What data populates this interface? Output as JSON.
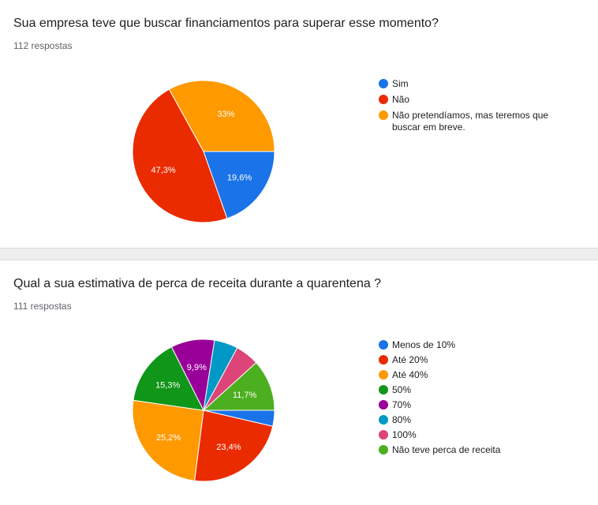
{
  "colors": {
    "blue": "#1a73e8",
    "red": "#ea4335",
    "orange": "#ff9900",
    "green": "#109618",
    "purple": "#990099",
    "teal": "#0099c6",
    "pink": "#dd4477",
    "lightgreen": "#66aa00"
  },
  "questions": [
    {
      "title": "Sua empresa teve que buscar financiamentos para superar esse momento?",
      "responses": "112 respostas"
    },
    {
      "title": "Qual a sua estimativa de perca de receita durante a quarentena ?",
      "responses": "111 respostas"
    }
  ],
  "chart_data": [
    {
      "type": "pie",
      "title": "Sua empresa teve que buscar financiamentos para superar esse momento?",
      "legend_position": "right",
      "categories": [
        "Sim",
        "Não",
        "Não pretendíamos, mas teremos que buscar em breve."
      ],
      "values": [
        19.6,
        47.3,
        33.0
      ],
      "labels": [
        "19,6%",
        "47,3%",
        "33%"
      ],
      "colors": [
        "#1a73e8",
        "#ea2b00",
        "#ff9900"
      ]
    },
    {
      "type": "pie",
      "title": "Qual a sua estimativa de perca de receita durante a quarentena ?",
      "legend_position": "right",
      "categories": [
        "Menos de 10%",
        "Até 20%",
        "Até 40%",
        "50%",
        "70%",
        "80%",
        "100%",
        "Não teve perca de receita"
      ],
      "values": [
        3.6,
        23.4,
        25.2,
        15.3,
        9.9,
        5.4,
        5.4,
        11.7
      ],
      "labels": [
        "",
        "23,4%",
        "25,2%",
        "15,3%",
        "9,9%",
        "",
        "",
        "11,7%"
      ],
      "colors": [
        "#1a73e8",
        "#ea2b00",
        "#ff9900",
        "#109618",
        "#990099",
        "#0099c6",
        "#dd4477",
        "#4caf20"
      ]
    }
  ]
}
